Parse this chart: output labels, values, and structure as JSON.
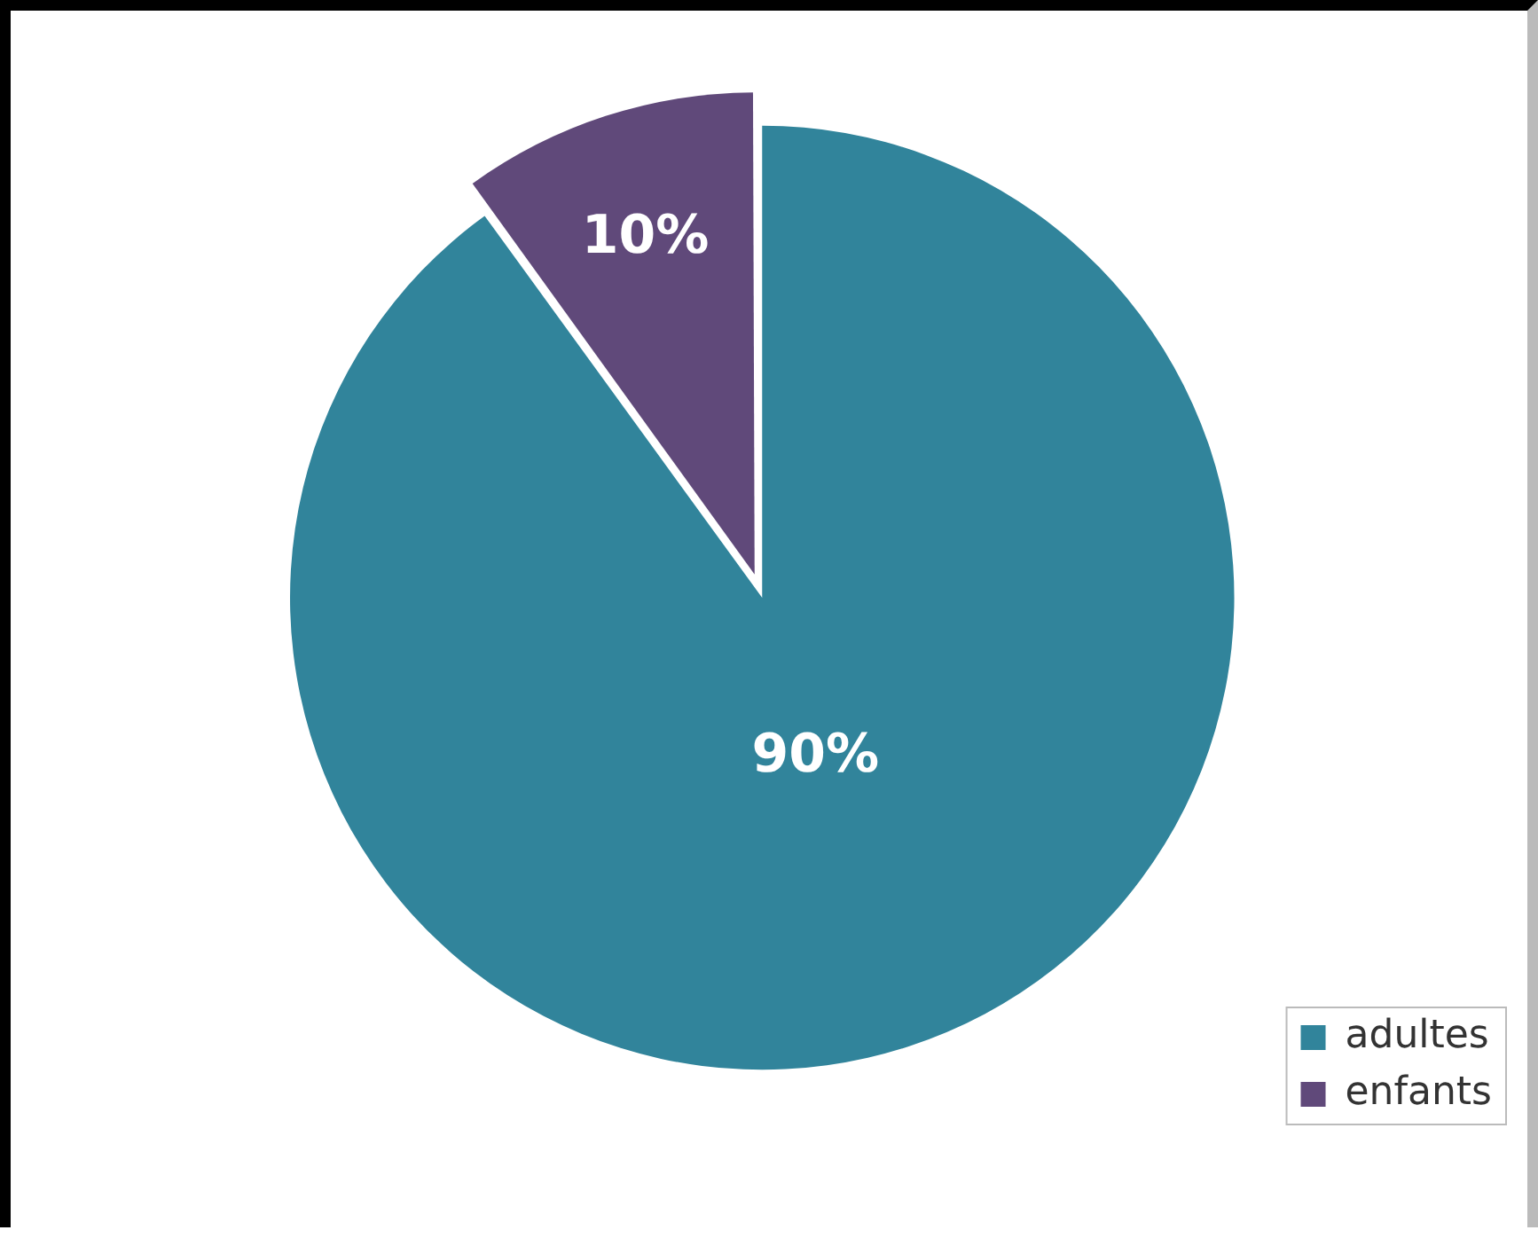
{
  "chart_data": {
    "type": "pie",
    "categories": [
      "adultes",
      "enfants"
    ],
    "values": [
      90,
      10
    ],
    "colors": [
      "#31849b",
      "#60497a"
    ],
    "value_labels": [
      "90%",
      "10%"
    ],
    "legend": "bottom right"
  }
}
